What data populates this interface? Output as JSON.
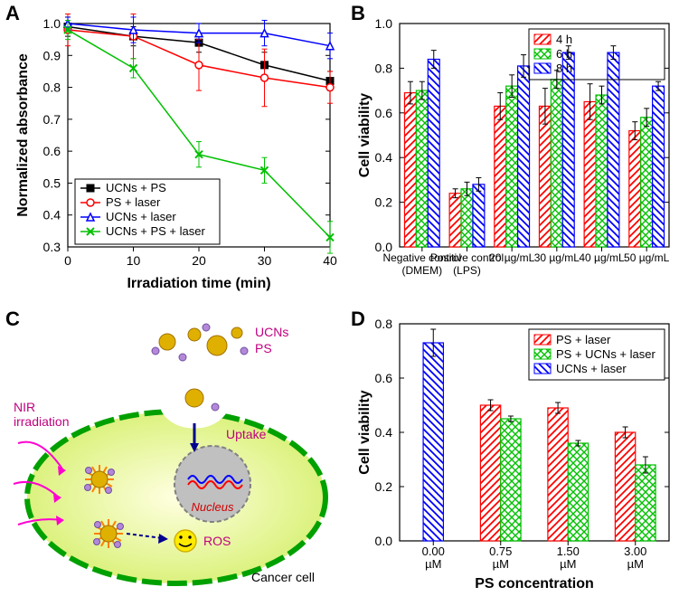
{
  "panelA": {
    "label": "A",
    "type": "line",
    "xlabel": "Irradiation time (min)",
    "ylabel": "Normalized absorbance",
    "xlabel_fontsize": 16,
    "ylabel_fontsize": 16,
    "axis_fontsize": 14,
    "xlim": [
      0,
      40
    ],
    "xtick_step": 10,
    "ylim": [
      0.3,
      1.0
    ],
    "ytick_step": 0.1,
    "background": "#ffffff",
    "series": [
      {
        "name": "UCNs + PS",
        "color": "#000000",
        "marker": "square-filled",
        "x": [
          0,
          10,
          20,
          30,
          40
        ],
        "y": [
          0.99,
          0.96,
          0.94,
          0.87,
          0.82
        ],
        "err": [
          0.03,
          0.03,
          0.03,
          0.04,
          0.03
        ]
      },
      {
        "name": "PS + laser",
        "color": "#ff0000",
        "marker": "circle-open",
        "x": [
          0,
          10,
          20,
          30,
          40
        ],
        "y": [
          0.98,
          0.96,
          0.87,
          0.83,
          0.8
        ],
        "err": [
          0.05,
          0.07,
          0.08,
          0.09,
          0.05
        ]
      },
      {
        "name": "UCNs + laser",
        "color": "#0000ff",
        "marker": "triangle-open",
        "x": [
          0,
          10,
          20,
          30,
          40
        ],
        "y": [
          1.0,
          0.98,
          0.97,
          0.97,
          0.93
        ],
        "err": [
          0.02,
          0.04,
          0.03,
          0.04,
          0.04
        ]
      },
      {
        "name": "UCNs + PS + laser",
        "color": "#00c000",
        "marker": "x",
        "x": [
          0,
          10,
          20,
          30,
          40
        ],
        "y": [
          0.98,
          0.86,
          0.59,
          0.54,
          0.33
        ],
        "err": [
          0.03,
          0.03,
          0.04,
          0.04,
          0.05
        ]
      }
    ],
    "legend_pos": "lower-left",
    "legend_fontsize": 13,
    "line_width": 1.5,
    "marker_size": 8
  },
  "panelB": {
    "label": "B",
    "type": "grouped-bar",
    "ylabel": "Cell viability",
    "ylabel_fontsize": 16,
    "axis_fontsize": 14,
    "ylim": [
      0.0,
      1.0
    ],
    "ytick_step": 0.2,
    "categories": [
      "Negative control (DMEM)",
      "Positive control (LPS)",
      "20 µg/mL",
      "30 µg/mL",
      "40 µg/mL",
      "50 µg/mL"
    ],
    "groups": [
      {
        "name": "4 h",
        "color": "#ff0000",
        "pattern": "diag-right",
        "values": [
          0.69,
          0.24,
          0.63,
          0.63,
          0.65,
          0.52
        ],
        "err": [
          0.05,
          0.02,
          0.06,
          0.08,
          0.08,
          0.04
        ]
      },
      {
        "name": "6 h",
        "color": "#00c000",
        "pattern": "cross",
        "values": [
          0.7,
          0.26,
          0.72,
          0.75,
          0.68,
          0.58
        ],
        "err": [
          0.04,
          0.03,
          0.05,
          0.04,
          0.04,
          0.04
        ]
      },
      {
        "name": "8 h",
        "color": "#0000ff",
        "pattern": "diag-left",
        "values": [
          0.84,
          0.28,
          0.81,
          0.87,
          0.87,
          0.72
        ],
        "err": [
          0.04,
          0.03,
          0.05,
          0.03,
          0.03,
          0.02
        ]
      }
    ],
    "bar_width": 0.26,
    "legend_pos": "upper-right",
    "legend_fontsize": 13
  },
  "panelC": {
    "label": "C",
    "type": "infographic",
    "labels": {
      "nir": "NIR irradiation",
      "ucns": "UCNs",
      "ps": "PS",
      "uptake": "Uptake",
      "nucleus": "Nucleus",
      "ros": "ROS",
      "cell": "Cancer cell"
    },
    "colors": {
      "cell_fill": "#d4ef6a",
      "cell_stroke": "#00a000",
      "nucleus_fill": "#c0c0c0",
      "nucleus_stroke": "#808080",
      "las_color": "#ff00d0",
      "ucn_fill": "#e0b000",
      "ps_fill": "#b488d8",
      "ros_face": "#ffeb00",
      "text_magenta": "#c00080",
      "text_red": "#d00000",
      "arrow_blue": "#000090"
    },
    "label_fontsize": 15
  },
  "panelD": {
    "label": "D",
    "type": "grouped-bar",
    "xlabel": "PS concentration",
    "ylabel": "Cell viability",
    "xlabel_fontsize": 16,
    "ylabel_fontsize": 16,
    "axis_fontsize": 14,
    "ylim": [
      0.0,
      0.8
    ],
    "ytick_step": 0.2,
    "categories": [
      "0.00 µM",
      "0.75 µM",
      "1.50 µM",
      "3.00 µM"
    ],
    "groups": [
      {
        "name": "PS + laser",
        "color": "#ff0000",
        "pattern": "diag-right",
        "values": [
          null,
          0.5,
          0.49,
          0.4
        ],
        "err": [
          null,
          0.02,
          0.02,
          0.02
        ]
      },
      {
        "name": "PS + UCNs + laser",
        "color": "#00c000",
        "pattern": "cross",
        "values": [
          null,
          0.45,
          0.36,
          0.28
        ],
        "err": [
          null,
          0.01,
          0.01,
          0.03
        ]
      },
      {
        "name": "UCNs + laser",
        "color": "#0000ff",
        "pattern": "diag-left",
        "values": [
          0.73,
          null,
          null,
          null
        ],
        "err": [
          0.05,
          null,
          null,
          null
        ]
      }
    ],
    "bar_width": 0.3,
    "legend_pos": "upper-right",
    "legend_fontsize": 13
  }
}
